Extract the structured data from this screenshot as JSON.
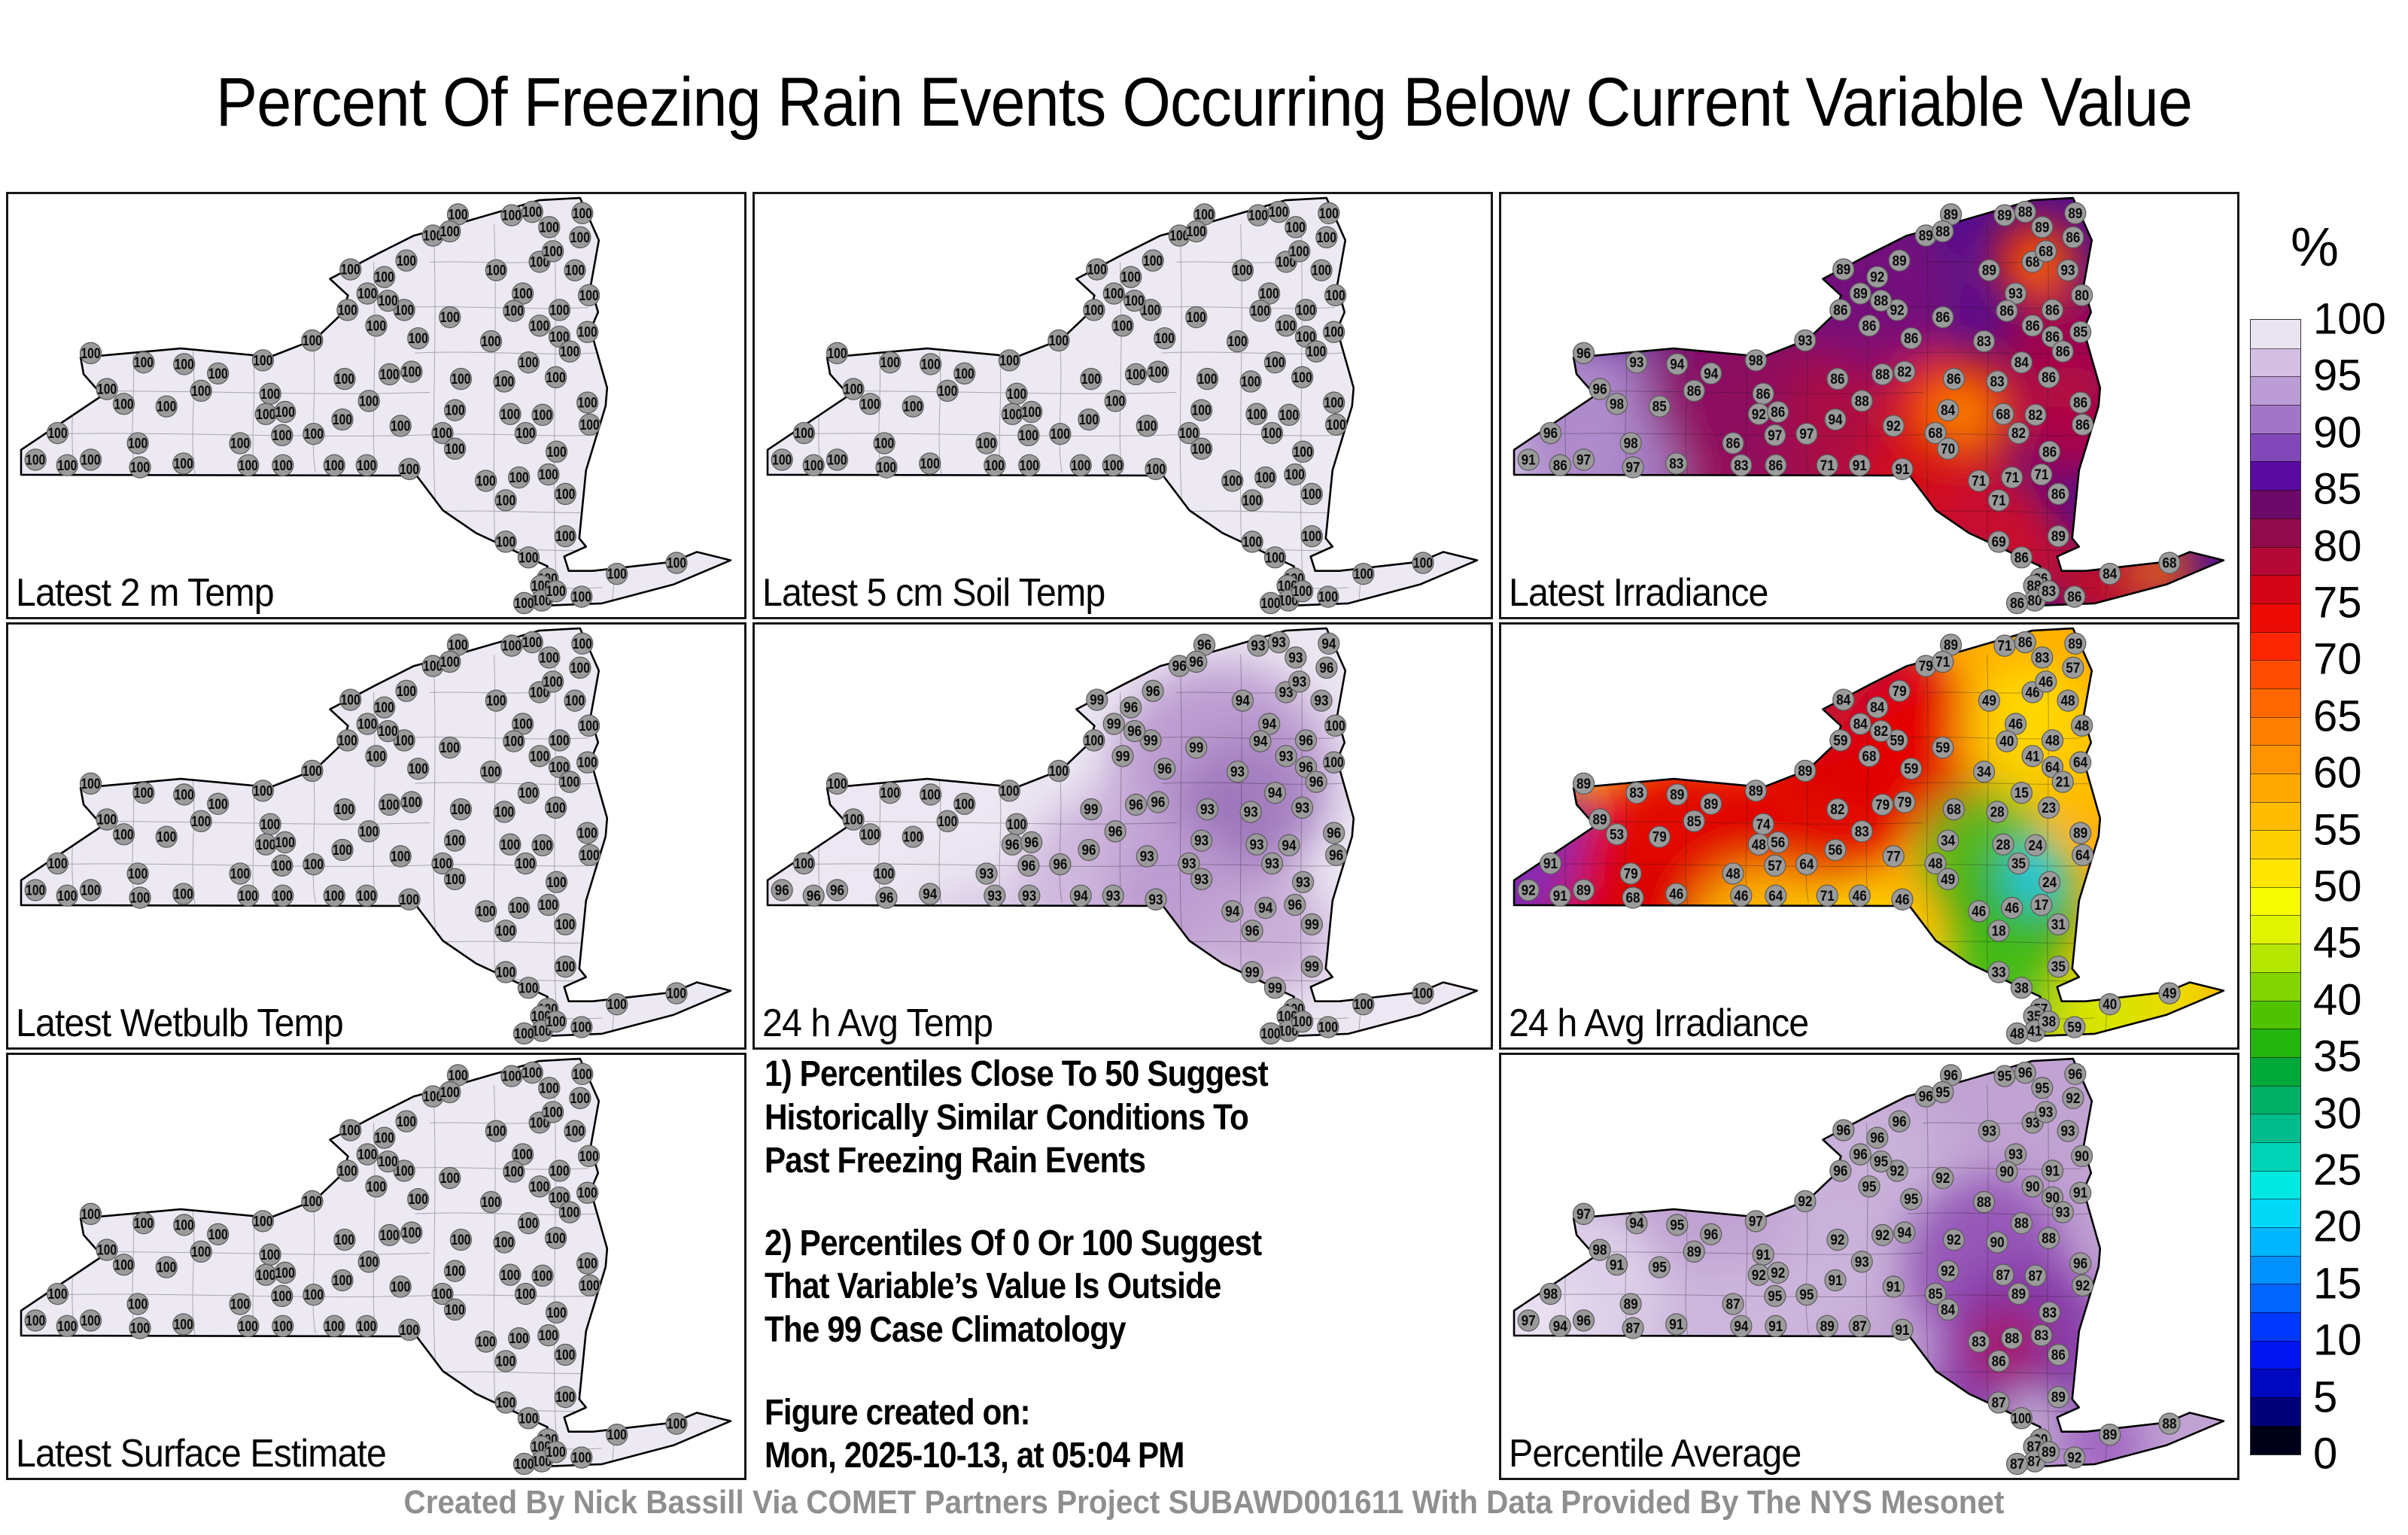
{
  "title": "Percent Of Freezing Rain Events Occurring Below Current Variable Value",
  "credit": "Created By Nick Bassill Via COMET Partners Project SUBAWD001611 With Data Provided By The NYS Mesonet",
  "colorbar": {
    "title": "%",
    "tick_labels": [
      100,
      95,
      90,
      85,
      80,
      75,
      70,
      65,
      60,
      55,
      50,
      45,
      40,
      35,
      30,
      25,
      20,
      15,
      10,
      5,
      0
    ],
    "segment_colors": [
      "#eae4f1",
      "#d4c0e2",
      "#bb9cd4",
      "#a276c6",
      "#8048b8",
      "#5a0ca2",
      "#6c0a6a",
      "#920c4c",
      "#b40836",
      "#d40418",
      "#ec0a04",
      "#fc2600",
      "#ff4c00",
      "#ff6800",
      "#ff8000",
      "#ff9400",
      "#ffa800",
      "#ffbc00",
      "#ffd000",
      "#ffe600",
      "#f8fc00",
      "#e0f400",
      "#b4e600",
      "#84d400",
      "#50c200",
      "#24b40e",
      "#00a83a",
      "#00ae66",
      "#00bc8c",
      "#00d2b6",
      "#00e8e0",
      "#00d8f8",
      "#00b6ff",
      "#0090ff",
      "#0064ff",
      "#0038ff",
      "#0014f0",
      "#0008c0",
      "#000078",
      "#000018"
    ]
  },
  "notes": {
    "blocks": [
      [
        "1) Percentiles Close To 50 Suggest",
        "Historically Similar Conditions To",
        "Past Freezing Rain Events"
      ],
      [
        "2) Percentiles Of 0 Or 100 Suggest",
        "That Variable’s Value Is Outside",
        "The 99 Case Climatology"
      ],
      [
        "Figure created on:",
        "Mon, 2025-10-13, at 05:04 PM"
      ]
    ]
  },
  "stations": [
    [
      465,
      178
    ],
    [
      488,
      235
    ],
    [
      511,
      196
    ],
    [
      541,
      157
    ],
    [
      577,
      98
    ],
    [
      611,
      48
    ],
    [
      600,
      88
    ],
    [
      684,
      50
    ],
    [
      712,
      42
    ],
    [
      780,
      45
    ],
    [
      777,
      102
    ],
    [
      735,
      78
    ],
    [
      663,
      180
    ],
    [
      722,
      160
    ],
    [
      740,
      135
    ],
    [
      699,
      235
    ],
    [
      687,
      276
    ],
    [
      656,
      348
    ],
    [
      600,
      291
    ],
    [
      538,
      274
    ],
    [
      516,
      252
    ],
    [
      557,
      341
    ],
    [
      789,
      239
    ],
    [
      787,
      326
    ],
    [
      749,
      337
    ],
    [
      722,
      311
    ],
    [
      749,
      274
    ],
    [
      770,
      180
    ],
    [
      461,
      274
    ],
    [
      500,
      311
    ],
    [
      112,
      376
    ],
    [
      184,
      398
    ],
    [
      239,
      402
    ],
    [
      134,
      461
    ],
    [
      157,
      496
    ],
    [
      215,
      502
    ],
    [
      67,
      565
    ],
    [
      37,
      628
    ],
    [
      80,
      641
    ],
    [
      112,
      628
    ],
    [
      176,
      589
    ],
    [
      179,
      646
    ],
    [
      238,
      637
    ],
    [
      285,
      424
    ],
    [
      346,
      393
    ],
    [
      262,
      465
    ],
    [
      356,
      472
    ],
    [
      350,
      520
    ],
    [
      376,
      515
    ],
    [
      415,
      567
    ],
    [
      372,
      570
    ],
    [
      315,
      589
    ],
    [
      326,
      641
    ],
    [
      373,
      641
    ],
    [
      443,
      641
    ],
    [
      487,
      641
    ],
    [
      454,
      533
    ],
    [
      490,
      489
    ],
    [
      413,
      346
    ],
    [
      457,
      437
    ],
    [
      518,
      426
    ],
    [
      548,
      420
    ],
    [
      615,
      437
    ],
    [
      607,
      511
    ],
    [
      533,
      548
    ],
    [
      545,
      650
    ],
    [
      590,
      565
    ],
    [
      607,
      602
    ],
    [
      649,
      678
    ],
    [
      676,
      724
    ],
    [
      694,
      670
    ],
    [
      734,
      663
    ],
    [
      757,
      709
    ],
    [
      745,
      609
    ],
    [
      703,
      565
    ],
    [
      682,
      520
    ],
    [
      726,
      522
    ],
    [
      787,
      493
    ],
    [
      790,
      545
    ],
    [
      674,
      443
    ],
    [
      744,
      433
    ],
    [
      707,
      398
    ],
    [
      763,
      372
    ],
    [
      676,
      822
    ],
    [
      707,
      859
    ],
    [
      757,
      809
    ],
    [
      733,
      909
    ],
    [
      724,
      926
    ],
    [
      725,
      961
    ],
    [
      744,
      939
    ],
    [
      701,
      967
    ],
    [
      779,
      952
    ],
    [
      827,
      898
    ],
    [
      908,
      872
    ]
  ],
  "panels": [
    {
      "key": "a",
      "type": "map",
      "label": "Latest 2 m Temp",
      "base": "#ede9f3",
      "uniform": 100,
      "blobs": []
    },
    {
      "key": "b",
      "type": "map",
      "label": "Latest 5 cm Soil Temp",
      "base": "#ede9f3",
      "uniform": 100,
      "blobs": []
    },
    {
      "key": "c",
      "type": "map",
      "label": "Latest Irradiance",
      "base": "#53108e",
      "blobs": [
        [
          45,
          330,
          140,
          "#e6dcf0",
          1
        ],
        [
          135,
          320,
          130,
          "#a982c6",
          0.9
        ],
        [
          380,
          330,
          150,
          "#a50a50",
          0.85
        ],
        [
          300,
          250,
          110,
          "#8c0d62",
          0.8
        ],
        [
          500,
          300,
          120,
          "#b00840",
          0.85
        ],
        [
          500,
          130,
          110,
          "#7c1078",
          0.8
        ],
        [
          710,
          88,
          55,
          "#f02000",
          1
        ],
        [
          718,
          95,
          26,
          "#ff7a00",
          1
        ],
        [
          745,
          205,
          80,
          "#b00840",
          0.8
        ],
        [
          760,
          300,
          75,
          "#c00838",
          0.8
        ],
        [
          600,
          290,
          85,
          "#e82800",
          1
        ],
        [
          608,
          295,
          40,
          "#ff8c00",
          1
        ],
        [
          560,
          390,
          85,
          "#d81010",
          0.9
        ],
        [
          645,
          430,
          75,
          "#cc0c30",
          0.9
        ],
        [
          700,
          470,
          60,
          "#d00828",
          0.85
        ],
        [
          800,
          520,
          60,
          "#cc1020",
          0.9
        ],
        [
          880,
          495,
          38,
          "#ff6a00",
          1
        ]
      ],
      "values": [
        89,
        89,
        92,
        89,
        89,
        89,
        88,
        89,
        88,
        89,
        86,
        89,
        89,
        68,
        68,
        93,
        86,
        83,
        86,
        92,
        88,
        86,
        80,
        85,
        86,
        86,
        86,
        93,
        86,
        86,
        96,
        93,
        94,
        96,
        98,
        85,
        96,
        91,
        86,
        97,
        98,
        97,
        83,
        94,
        98,
        86,
        86,
        92,
        86,
        97,
        97,
        86,
        83,
        86,
        71,
        91,
        94,
        88,
        93,
        86,
        88,
        82,
        86,
        84,
        92,
        91,
        68,
        70,
        71,
        71,
        71,
        71,
        86,
        86,
        82,
        68,
        82,
        86,
        86,
        83,
        86,
        84,
        86,
        69,
        86,
        89,
        86,
        88,
        80,
        83,
        86,
        86,
        84,
        68
      ]
    },
    {
      "key": "d",
      "type": "map",
      "label": "Latest Wetbulb Temp",
      "base": "#ede9f3",
      "uniform": 100,
      "blobs": []
    },
    {
      "key": "e",
      "type": "map",
      "label": "24 h Avg Temp",
      "base": "#ece7f2",
      "blobs": [
        [
          620,
          200,
          150,
          "#b793cd",
          0.9
        ],
        [
          650,
          240,
          90,
          "#a47fbf",
          1
        ],
        [
          600,
          280,
          70,
          "#9b72b9",
          0.9
        ],
        [
          480,
          340,
          120,
          "#c7abd8",
          0.9
        ],
        [
          420,
          390,
          100,
          "#cfb8de",
          0.9
        ],
        [
          560,
          360,
          95,
          "#bb9bd0",
          0.9
        ],
        [
          680,
          410,
          85,
          "#c3a5d4",
          0.85
        ],
        [
          300,
          430,
          90,
          "#d9c9e6",
          0.9
        ],
        [
          100,
          560,
          60,
          "#d9c9e6",
          0.8
        ]
      ],
      "values": [
        99,
        99,
        96,
        96,
        96,
        96,
        96,
        93,
        93,
        94,
        96,
        93,
        94,
        93,
        93,
        94,
        94,
        93,
        99,
        99,
        96,
        96,
        100,
        100,
        96,
        93,
        96,
        93,
        100,
        99,
        100,
        100,
        100,
        100,
        100,
        100,
        100,
        96,
        96,
        96,
        100,
        96,
        94,
        100,
        100,
        100,
        100,
        96,
        96,
        96,
        96,
        93,
        93,
        93,
        94,
        93,
        96,
        96,
        100,
        99,
        96,
        96,
        93,
        93,
        93,
        93,
        93,
        93,
        94,
        96,
        94,
        96,
        99,
        93,
        93,
        93,
        94,
        96,
        96,
        93,
        93,
        94,
        96,
        99,
        99,
        99,
        100,
        100,
        100,
        100,
        100,
        100,
        100,
        100
      ]
    },
    {
      "key": "f",
      "type": "map",
      "label": "24 h Avg Irradiance",
      "base": "#ffae00",
      "blobs": [
        [
          25,
          330,
          120,
          "#7a22a8",
          1
        ],
        [
          55,
          300,
          90,
          "#8a2cb0",
          0.9
        ],
        [
          470,
          120,
          125,
          "#b5083c",
          0.95
        ],
        [
          560,
          170,
          110,
          "#e80000",
          0.9
        ],
        [
          420,
          250,
          110,
          "#e00000",
          0.9
        ],
        [
          250,
          330,
          150,
          "#e00000",
          0.95
        ],
        [
          170,
          430,
          110,
          "#d80000",
          0.9
        ],
        [
          350,
          420,
          100,
          "#ffc400",
          0.9
        ],
        [
          470,
          430,
          90,
          "#ffd800",
          0.9
        ],
        [
          520,
          490,
          90,
          "#f5e800",
          0.9
        ],
        [
          400,
          520,
          80,
          "#ffe000",
          0.9
        ],
        [
          700,
          140,
          90,
          "#ffdc00",
          0.9
        ],
        [
          760,
          210,
          60,
          "#ffc000",
          0.8
        ],
        [
          640,
          300,
          85,
          "#50b81e",
          0.95
        ],
        [
          680,
          390,
          85,
          "#38b014",
          0.95
        ],
        [
          660,
          460,
          75,
          "#42ba18",
          0.95
        ],
        [
          700,
          510,
          60,
          "#4cc020",
          0.9
        ],
        [
          712,
          330,
          42,
          "#00d8e8",
          1
        ],
        [
          707,
          338,
          20,
          "#30a8ff",
          0.9
        ],
        [
          800,
          520,
          75,
          "#d8e400",
          1
        ],
        [
          900,
          488,
          45,
          "#e8e400",
          1
        ]
      ],
      "values": [
        84,
        84,
        84,
        79,
        79,
        89,
        71,
        71,
        86,
        89,
        57,
        83,
        49,
        46,
        46,
        46,
        40,
        34,
        59,
        59,
        82,
        59,
        48,
        64,
        64,
        41,
        48,
        48,
        59,
        68,
        89,
        83,
        89,
        89,
        53,
        79,
        91,
        92,
        91,
        89,
        79,
        68,
        46,
        89,
        89,
        85,
        74,
        48,
        56,
        64,
        57,
        48,
        46,
        64,
        71,
        46,
        56,
        83,
        89,
        82,
        79,
        79,
        68,
        34,
        77,
        46,
        48,
        49,
        46,
        18,
        46,
        17,
        31,
        24,
        35,
        28,
        24,
        89,
        64,
        28,
        23,
        15,
        21,
        33,
        38,
        35,
        57,
        35,
        41,
        38,
        48,
        59,
        40,
        49
      ]
    },
    {
      "key": "g",
      "type": "map",
      "label": "Latest Surface Estimate",
      "base": "#ede9f3",
      "uniform": 100,
      "blobs": []
    },
    {
      "key": "notes",
      "type": "notes",
      "label": ""
    },
    {
      "key": "i",
      "type": "map",
      "label": "Percentile Average",
      "base": "#c1a3d3",
      "blobs": [
        [
          80,
          340,
          150,
          "#ded2ea",
          0.95
        ],
        [
          35,
          360,
          70,
          "#eae2f2",
          0.9
        ],
        [
          300,
          380,
          110,
          "#cdb8dd",
          0.9
        ],
        [
          430,
          300,
          80,
          "#cdb8dd",
          0.8
        ],
        [
          480,
          160,
          120,
          "#cab2da",
          0.9
        ],
        [
          640,
          270,
          110,
          "#9250b5",
          0.9
        ],
        [
          700,
          380,
          110,
          "#8438a8",
          0.95
        ],
        [
          650,
          460,
          90,
          "#8a3eac",
          0.9
        ],
        [
          668,
          385,
          52,
          "#aa1060",
          0.9
        ],
        [
          703,
          480,
          26,
          "#e6daf0",
          1
        ],
        [
          800,
          520,
          55,
          "#9d5cc0",
          0.9
        ]
      ],
      "values": [
        96,
        96,
        96,
        96,
        96,
        96,
        95,
        95,
        96,
        96,
        92,
        95,
        93,
        93,
        93,
        93,
        90,
        88,
        92,
        92,
        95,
        95,
        90,
        91,
        90,
        90,
        91,
        93,
        96,
        95,
        97,
        94,
        95,
        98,
        91,
        95,
        98,
        97,
        94,
        96,
        89,
        87,
        91,
        96,
        97,
        89,
        91,
        92,
        92,
        95,
        95,
        87,
        94,
        91,
        89,
        87,
        91,
        93,
        92,
        92,
        92,
        94,
        92,
        92,
        91,
        91,
        85,
        84,
        83,
        86,
        88,
        83,
        86,
        83,
        89,
        87,
        87,
        96,
        92,
        90,
        88,
        88,
        93,
        87,
        100,
        89,
        90,
        87,
        87,
        89,
        87,
        92,
        89,
        88
      ]
    }
  ],
  "layout_values": {
    "marker_color": "#9b9b9b",
    "marker_edge": "#5a5a5a",
    "value_text_color": "#0a0a0a"
  }
}
